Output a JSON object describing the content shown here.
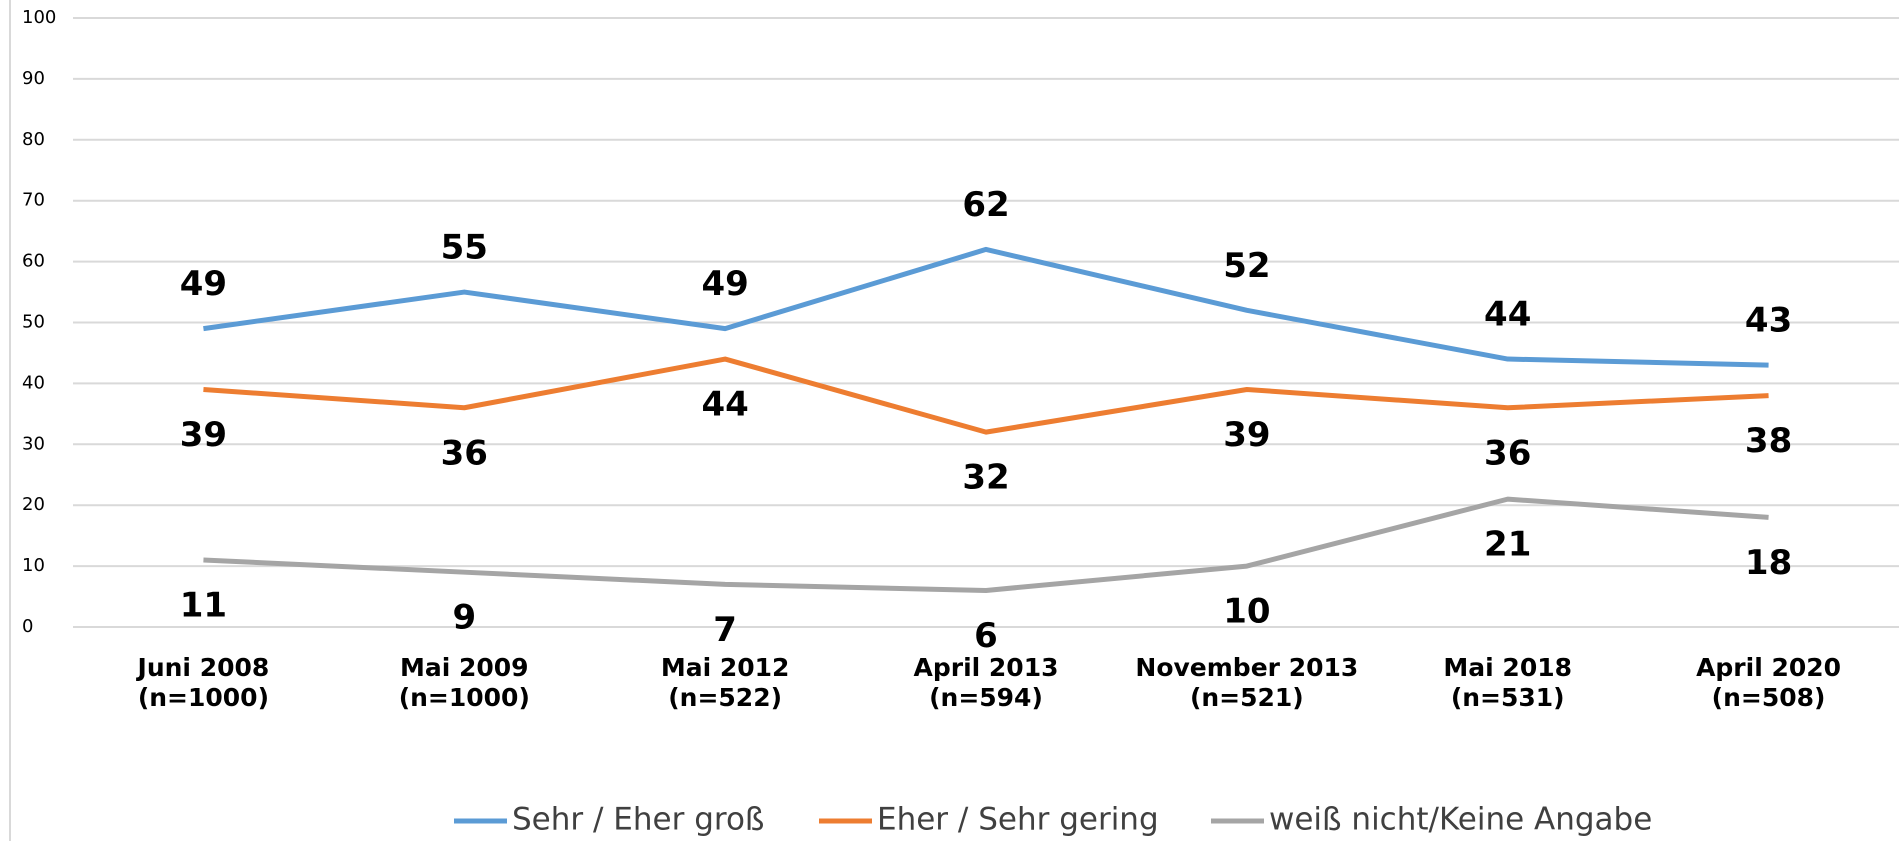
{
  "chart_data": {
    "type": "line",
    "categories": [
      "Juni 2008\n(n=1000)",
      "Mai 2009\n(n=1000)",
      "Mai 2012\n(n=522)",
      "April 2013\n(n=594)",
      "November 2013\n(n=521)",
      "Mai 2018\n(n=531)",
      "April 2020\n(n=508)"
    ],
    "series": [
      {
        "name": "Sehr / Eher groß",
        "color": "#5b9bd5",
        "values": [
          49,
          55,
          49,
          62,
          52,
          44,
          43
        ]
      },
      {
        "name": "Eher / Sehr gering",
        "color": "#ed7d31",
        "values": [
          39,
          36,
          44,
          32,
          39,
          36,
          38
        ]
      },
      {
        "name": "weiß nicht/Keine Angabe",
        "color": "#a5a5a5",
        "values": [
          11,
          9,
          7,
          6,
          10,
          21,
          18
        ]
      }
    ],
    "ylim": [
      0,
      100
    ],
    "yticks": [
      0,
      10,
      20,
      30,
      40,
      50,
      60,
      70,
      80,
      90,
      100
    ],
    "grid": true,
    "legend": "bottom"
  }
}
